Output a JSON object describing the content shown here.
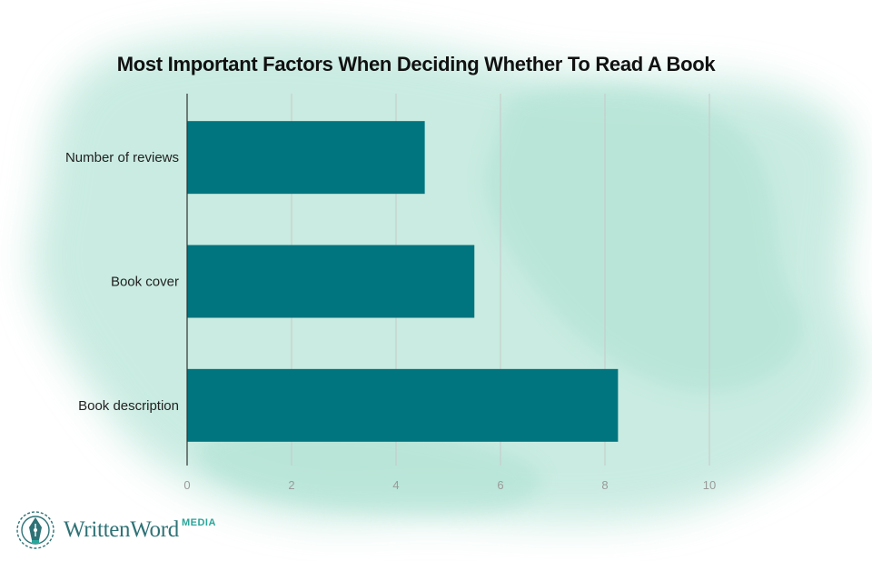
{
  "chart_data": {
    "type": "bar",
    "orientation": "horizontal",
    "title": "Most Important Factors When Deciding Whether To Read A Book",
    "categories": [
      "Number of reviews",
      "Book cover",
      "Book description"
    ],
    "values": [
      4.55,
      5.5,
      8.25
    ],
    "xlim": [
      0,
      10
    ],
    "xticks": [
      "0",
      "2",
      "4",
      "6",
      "8",
      "10"
    ],
    "grid": true,
    "bar_color": "#00757f"
  },
  "branding": {
    "logo_text": "WrittenWord",
    "logo_suffix": "MEDIA",
    "logo_color": "#2e7276",
    "accent_color": "#2aa59a"
  },
  "background": {
    "wash_color": "#9ddbc9"
  }
}
